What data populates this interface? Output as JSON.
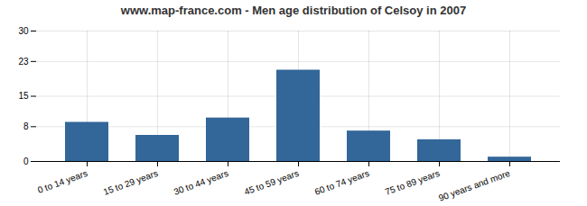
{
  "chart_data": {
    "type": "bar",
    "title": "www.map-france.com - Men age distribution of Celsoy in 2007",
    "categories": [
      "0 to 14 years",
      "15 to 29 years",
      "30 to 44 years",
      "45 to 59 years",
      "60 to 74 years",
      "75 to 89 years",
      "90 years and more"
    ],
    "values": [
      9,
      6,
      10,
      21,
      7,
      5,
      1
    ],
    "color": "#336699",
    "ylim": [
      0,
      30
    ],
    "yticks": [
      0,
      8,
      15,
      23,
      30
    ],
    "grid": true
  }
}
